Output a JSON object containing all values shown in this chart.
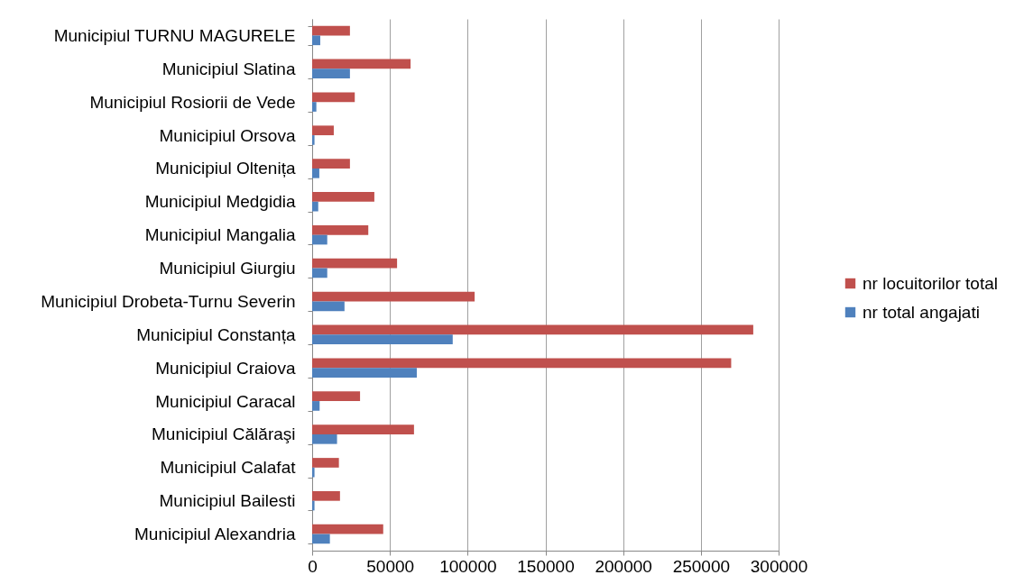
{
  "chart_data": {
    "type": "bar",
    "orientation": "horizontal",
    "categories": [
      "Municipiul TURNU MAGURELE",
      "Municipiul Slatina",
      "Municipiul Rosiorii de Vede",
      "Municipiul Orsova",
      "Municipiul Oltenița",
      "Municipiul Medgidia",
      "Municipiul Mangalia",
      "Municipiul Giurgiu",
      "Municipiul Drobeta-Turnu Severin",
      "Municipiul Constanța",
      "Municipiul Craiova",
      "Municipiul Caracal",
      "Municipiul Călăraşi",
      "Municipiul Calafat",
      "Municipiul Bailesti",
      "Municipiul Alexandria"
    ],
    "series": [
      {
        "name": "nr locuitorilor total",
        "color": "#c0504d",
        "values": [
          24300,
          63300,
          27400,
          13900,
          24300,
          40000,
          36100,
          54600,
          104500,
          283700,
          269500,
          30800,
          65500,
          17200,
          17900,
          45700
        ]
      },
      {
        "name": "nr total angajati",
        "color": "#4f81bd",
        "values": [
          5200,
          24300,
          2700,
          1500,
          4600,
          3900,
          9700,
          9700,
          20800,
          90400,
          67300,
          4800,
          16000,
          1500,
          1500,
          11400
        ]
      }
    ],
    "xlim": [
      0,
      300000
    ],
    "xticks": [
      0,
      50000,
      100000,
      150000,
      200000,
      250000,
      300000
    ],
    "grid": "x",
    "legend": "right"
  }
}
